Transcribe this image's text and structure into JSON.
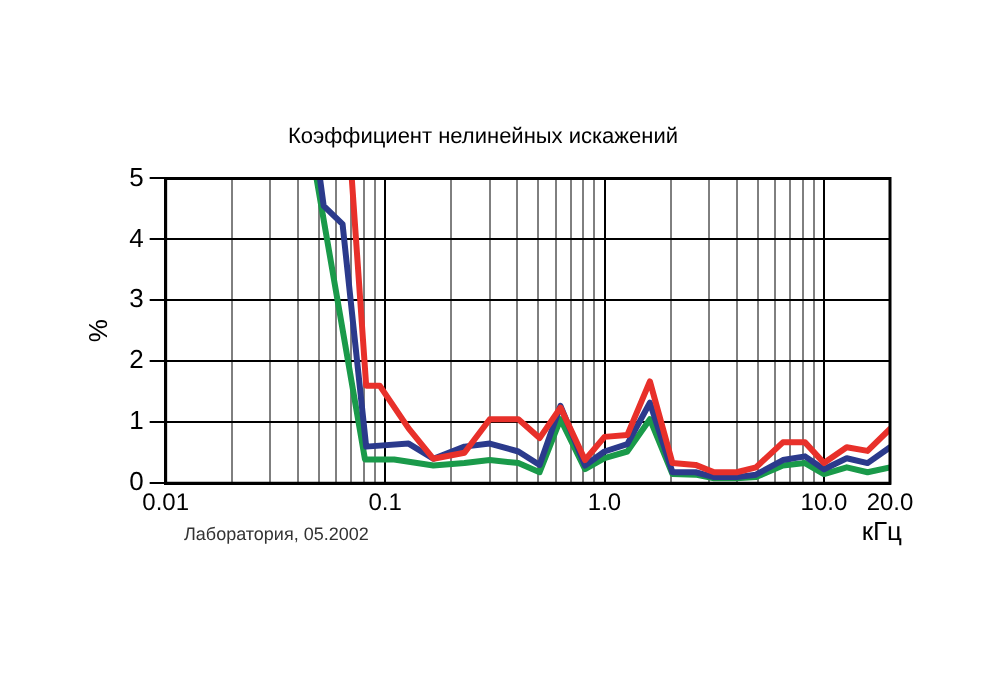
{
  "chart_data": {
    "type": "line",
    "title": "Коэффициент нелинейных искажений",
    "xlabel": "кГц",
    "ylabel": "%",
    "log": "x",
    "grid": true,
    "legend": false,
    "marker": "none",
    "line_style": "solid",
    "xlim": [
      0.01,
      20
    ],
    "ylim": [
      0,
      5
    ],
    "yticks": [
      0,
      1,
      2,
      3,
      4,
      5
    ],
    "xticks": [
      0.01,
      {
        "value": 0.02,
        "label": null
      },
      {
        "value": 0.03,
        "label": null
      },
      {
        "value": 0.04,
        "label": null
      },
      {
        "value": 0.05,
        "label": null
      },
      {
        "value": 0.06,
        "label": null
      },
      {
        "value": 0.07,
        "label": null
      },
      {
        "value": 0.08,
        "label": null
      },
      {
        "value": 0.09,
        "label": null
      },
      0.1,
      {
        "value": 0.2,
        "label": null
      },
      {
        "value": 0.3,
        "label": null
      },
      {
        "value": 0.4,
        "label": null
      },
      {
        "value": 0.5,
        "label": null
      },
      {
        "value": 0.6,
        "label": null
      },
      {
        "value": 0.7,
        "label": null
      },
      {
        "value": 0.8,
        "label": null
      },
      {
        "value": 0.9,
        "label": null
      },
      {
        "value": 1,
        "label": "1.0"
      },
      {
        "value": 2,
        "label": null
      },
      {
        "value": 3,
        "label": null
      },
      {
        "value": 4,
        "label": null
      },
      {
        "value": 5,
        "label": null
      },
      {
        "value": 6,
        "label": null
      },
      {
        "value": 7,
        "label": null
      },
      {
        "value": 8,
        "label": null
      },
      {
        "value": 9,
        "label": null
      },
      {
        "value": 10,
        "label": "10.0"
      },
      {
        "value": 20,
        "label": "20.0"
      }
    ],
    "annotations": [
      "Лаборатория, 05.2002"
    ],
    "series": [
      {
        "color": "#e8302a",
        "x": [
          0.0705,
          0.082,
          0.0945,
          0.128,
          0.166,
          0.23,
          0.3,
          0.405,
          0.506,
          0.63,
          0.815,
          1.0,
          1.27,
          1.61,
          2.04,
          2.6,
          3.16,
          4.0,
          4.9,
          6.5,
          8.2,
          10,
          12.7,
          15.8,
          20
        ],
        "values": [
          5,
          1.6,
          1.6,
          0.9,
          0.4,
          0.5,
          1.05,
          1.05,
          0.74,
          1.24,
          0.38,
          0.76,
          0.79,
          1.67,
          0.33,
          0.3,
          0.18,
          0.18,
          0.26,
          0.67,
          0.67,
          0.33,
          0.59,
          0.53,
          0.89
        ]
      },
      {
        "color": "#2b3a8c",
        "x": [
          0.0505,
          0.0525,
          0.064,
          0.082,
          0.128,
          0.166,
          0.23,
          0.3,
          0.405,
          0.506,
          0.63,
          0.815,
          1.0,
          1.27,
          1.61,
          2.04,
          2.6,
          3.16,
          4.0,
          4.9,
          6.5,
          8.2,
          10,
          12.7,
          15.8,
          20
        ],
        "values": [
          5,
          4.55,
          4.25,
          0.6,
          0.65,
          0.4,
          0.6,
          0.65,
          0.52,
          0.3,
          1.27,
          0.29,
          0.52,
          0.64,
          1.32,
          0.18,
          0.18,
          0.1,
          0.1,
          0.14,
          0.38,
          0.44,
          0.23,
          0.41,
          0.33,
          0.59
        ]
      },
      {
        "color": "#1a9a4a",
        "x": [
          0.0487,
          0.081,
          0.11,
          0.166,
          0.23,
          0.3,
          0.405,
          0.506,
          0.63,
          0.815,
          1.0,
          1.27,
          1.61,
          2.04,
          2.6,
          3.16,
          4.0,
          4.9,
          6.5,
          8.2,
          10,
          12.7,
          15.8,
          20
        ],
        "values": [
          5,
          0.39,
          0.39,
          0.29,
          0.33,
          0.38,
          0.33,
          0.18,
          1.05,
          0.23,
          0.41,
          0.52,
          1.05,
          0.15,
          0.14,
          0.08,
          0.08,
          0.1,
          0.29,
          0.33,
          0.15,
          0.26,
          0.18,
          0.26
        ]
      }
    ]
  }
}
